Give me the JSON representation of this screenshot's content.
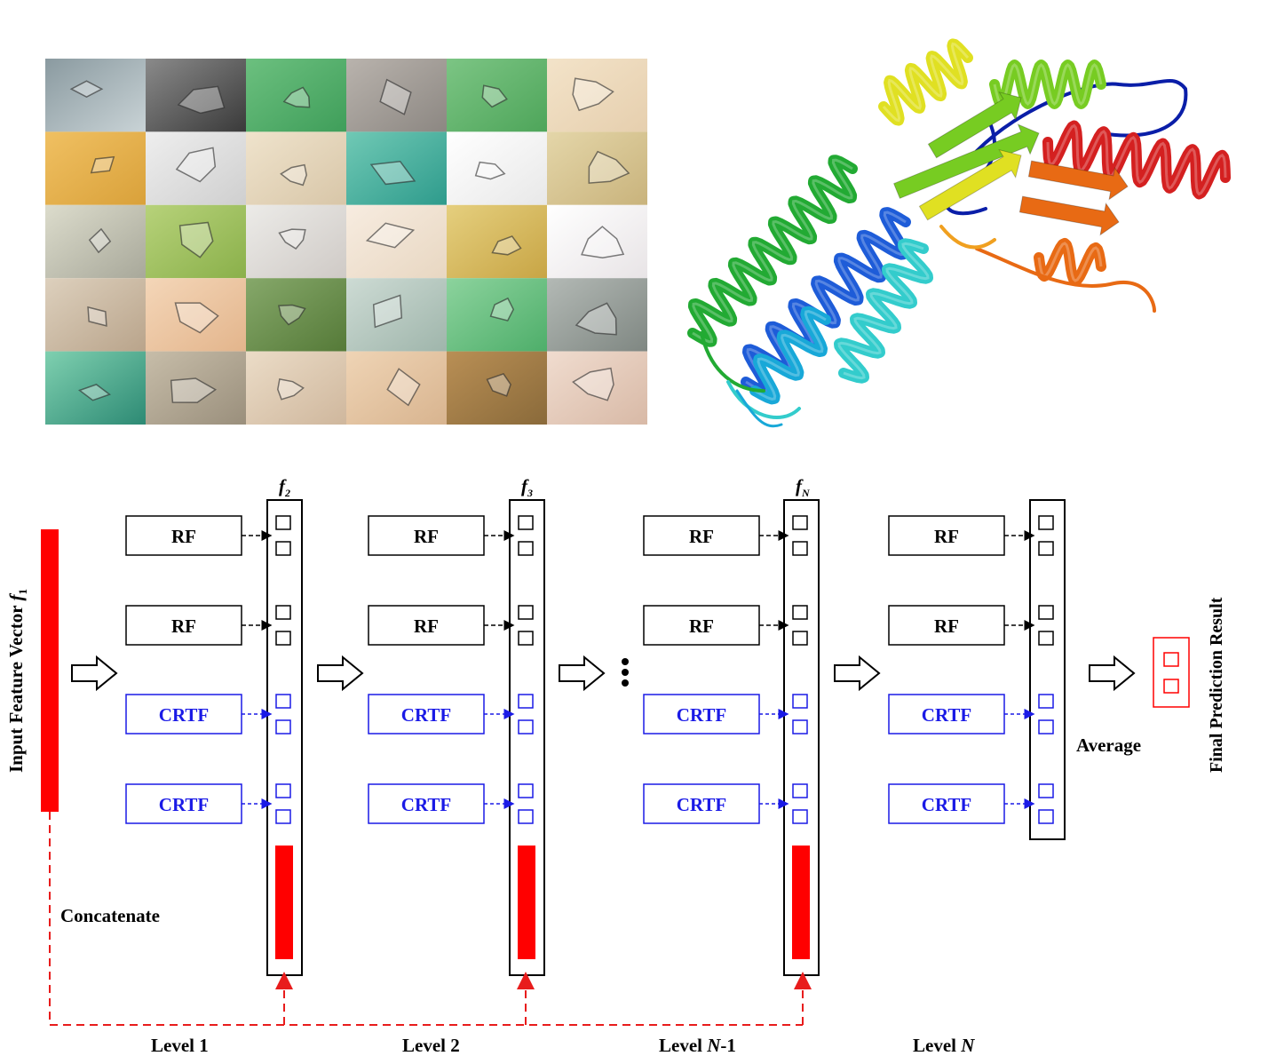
{
  "input_label": "Input Feature Vector",
  "input_symbol": "f",
  "input_subscript": "1",
  "concatenate_label": "Concatenate",
  "rf_label": "RF",
  "crtf_label": "CRTF",
  "average_label": "Average",
  "final_label": "Final Prediction Result",
  "ellipsis": "…",
  "levels": [
    {
      "label_pre": "Level 1",
      "label_italic": "",
      "label_post": ""
    },
    {
      "label_pre": "Level 2",
      "label_italic": "",
      "label_post": ""
    },
    {
      "label_pre": "Level ",
      "label_italic": "N",
      "label_post": "-1"
    },
    {
      "label_pre": "Level ",
      "label_italic": "N",
      "label_post": ""
    }
  ],
  "feature_vectors": [
    {
      "symbol": "f",
      "subscript": "2"
    },
    {
      "symbol": "f",
      "subscript": "3"
    },
    {
      "symbol": "f",
      "subscript": "N"
    }
  ],
  "colors": {
    "rf": "#000000",
    "crtf": "#1a1ae6",
    "feature": "#ff0000",
    "concat_arrow": "#e81c1c"
  },
  "crystal_grid": {
    "rows": 5,
    "cols": 6
  },
  "protein_colors": [
    "#0a1ea8",
    "#1e5cd8",
    "#18a8d8",
    "#33cccc",
    "#22aa33",
    "#77cc22",
    "#e0e022",
    "#f0a020",
    "#e86a14",
    "#d42020"
  ]
}
